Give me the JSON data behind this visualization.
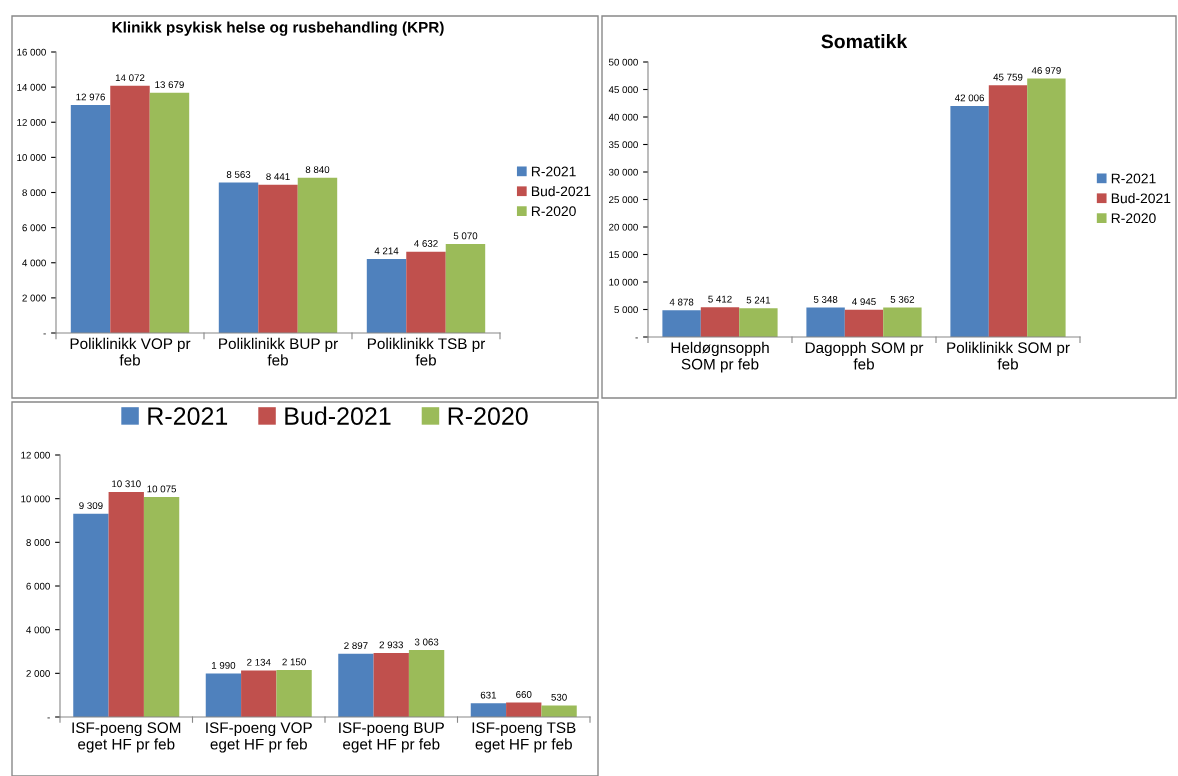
{
  "chart_data": [
    {
      "type": "bar",
      "title": "Klinikk psykisk helse og rusbehandling (KPR)",
      "categories": [
        "Poliklinikk VOP pr\nfeb",
        "Poliklinikk BUP pr\nfeb",
        "Poliklinikk TSB pr\nfeb"
      ],
      "series": [
        {
          "name": "R-2021",
          "color": "#4f81bd",
          "values": [
            12976,
            8563,
            4214
          ]
        },
        {
          "name": "Bud-2021",
          "color": "#c0504d",
          "values": [
            14072,
            8441,
            4632
          ]
        },
        {
          "name": "R-2020",
          "color": "#9bbb59",
          "values": [
            13679,
            8840,
            5070
          ]
        }
      ],
      "ylim": [
        0,
        16000
      ],
      "yticks": [
        {
          "value": 0,
          "label": "-"
        },
        {
          "value": 2000,
          "label": "2 000"
        },
        {
          "value": 4000,
          "label": "4 000"
        },
        {
          "value": 6000,
          "label": "6 000"
        },
        {
          "value": 8000,
          "label": "8 000"
        },
        {
          "value": 10000,
          "label": "10 000"
        },
        {
          "value": 12000,
          "label": "12 000"
        },
        {
          "value": 14000,
          "label": "14 000"
        },
        {
          "value": 16000,
          "label": "16 000"
        }
      ],
      "data_labels": true,
      "legend": "right",
      "grid": false
    },
    {
      "type": "bar",
      "title": "Somatikk",
      "categories": [
        "Heldøgnsopph\nSOM pr feb",
        "Dagopph SOM pr\nfeb",
        "Poliklinikk SOM pr\nfeb"
      ],
      "series": [
        {
          "name": "R-2021",
          "color": "#4f81bd",
          "values": [
            4878,
            5348,
            42006
          ]
        },
        {
          "name": "Bud-2021",
          "color": "#c0504d",
          "values": [
            5412,
            4945,
            45759
          ]
        },
        {
          "name": "R-2020",
          "color": "#9bbb59",
          "values": [
            5241,
            5362,
            46979
          ]
        }
      ],
      "ylim": [
        0,
        50000
      ],
      "yticks": [
        {
          "value": 0,
          "label": "-"
        },
        {
          "value": 5000,
          "label": "5 000"
        },
        {
          "value": 10000,
          "label": "10 000"
        },
        {
          "value": 15000,
          "label": "15 000"
        },
        {
          "value": 20000,
          "label": "20 000"
        },
        {
          "value": 25000,
          "label": "25 000"
        },
        {
          "value": 30000,
          "label": "30 000"
        },
        {
          "value": 35000,
          "label": "35 000"
        },
        {
          "value": 40000,
          "label": "40 000"
        },
        {
          "value": 45000,
          "label": "45 000"
        },
        {
          "value": 50000,
          "label": "50 000"
        }
      ],
      "data_labels": true,
      "legend": "right",
      "grid": false
    },
    {
      "type": "bar",
      "categories": [
        "ISF-poeng SOM\neget HF pr feb",
        "ISF-poeng VOP\neget HF pr feb",
        "ISF-poeng BUP\neget HF pr feb",
        "ISF-poeng TSB\neget HF pr feb"
      ],
      "series": [
        {
          "name": "R-2021",
          "color": "#4f81bd",
          "values": [
            9309,
            1990,
            2897,
            631
          ]
        },
        {
          "name": "Bud-2021",
          "color": "#c0504d",
          "values": [
            10310,
            2134,
            2933,
            660
          ]
        },
        {
          "name": "R-2020",
          "color": "#9bbb59",
          "values": [
            10075,
            2150,
            3063,
            530
          ]
        }
      ],
      "ylim": [
        0,
        12000
      ],
      "yticks": [
        {
          "value": 0,
          "label": "-"
        },
        {
          "value": 2000,
          "label": "2 000"
        },
        {
          "value": 4000,
          "label": "4 000"
        },
        {
          "value": 6000,
          "label": "6 000"
        },
        {
          "value": 8000,
          "label": "8 000"
        },
        {
          "value": 10000,
          "label": "10 000"
        },
        {
          "value": 12000,
          "label": "12 000"
        }
      ],
      "data_labels": true,
      "legend": "top",
      "grid": false
    }
  ]
}
